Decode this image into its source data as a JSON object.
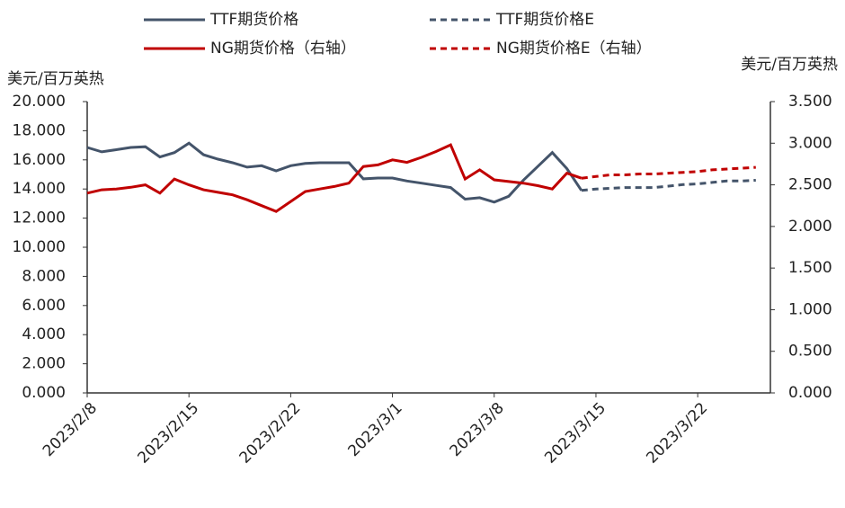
{
  "chart_data": {
    "type": "line",
    "y_label": "美元/百万英热",
    "y2_label": "美元/百万英热",
    "x": [
      "2023/2/8",
      "2023/2/9",
      "2023/2/10",
      "2023/2/11",
      "2023/2/12",
      "2023/2/13",
      "2023/2/14",
      "2023/2/15",
      "2023/2/16",
      "2023/2/17",
      "2023/2/18",
      "2023/2/19",
      "2023/2/20",
      "2023/2/21",
      "2023/2/22",
      "2023/2/23",
      "2023/2/24",
      "2023/2/25",
      "2023/2/26",
      "2023/2/27",
      "2023/2/28",
      "2023/3/1",
      "2023/3/2",
      "2023/3/3",
      "2023/3/4",
      "2023/3/5",
      "2023/3/6",
      "2023/3/7",
      "2023/3/8",
      "2023/3/9",
      "2023/3/10",
      "2023/3/11",
      "2023/3/12",
      "2023/3/13",
      "2023/3/14",
      "2023/3/15",
      "2023/3/16",
      "2023/3/17",
      "2023/3/18",
      "2023/3/19",
      "2023/3/20",
      "2023/3/21",
      "2023/3/22",
      "2023/3/23",
      "2023/3/24",
      "2023/3/25",
      "2023/3/26"
    ],
    "xlim": [
      "2023/2/8",
      "2023/3/27"
    ],
    "xticks": [
      "2023/2/8",
      "2023/2/15",
      "2023/2/22",
      "2023/3/1",
      "2023/3/8",
      "2023/3/15",
      "2023/3/22"
    ],
    "ylim": [
      0,
      20
    ],
    "yticks": [
      {
        "value": 0,
        "label": "0.000"
      },
      {
        "value": 2,
        "label": "2.000"
      },
      {
        "value": 4,
        "label": "4.000"
      },
      {
        "value": 6,
        "label": "6.000"
      },
      {
        "value": 8,
        "label": "8.000"
      },
      {
        "value": 10,
        "label": "10.000"
      },
      {
        "value": 12,
        "label": "12.000"
      },
      {
        "value": 14,
        "label": "14.000"
      },
      {
        "value": 16,
        "label": "16.000"
      },
      {
        "value": 18,
        "label": "18.000"
      },
      {
        "value": 20,
        "label": "20.000"
      }
    ],
    "y2lim": [
      0,
      3.5
    ],
    "y2ticks": [
      {
        "value": 0,
        "label": "0.000"
      },
      {
        "value": 0.5,
        "label": "0.500"
      },
      {
        "value": 1,
        "label": "1.000"
      },
      {
        "value": 1.5,
        "label": "1.500"
      },
      {
        "value": 2,
        "label": "2.000"
      },
      {
        "value": 2.5,
        "label": "2.500"
      },
      {
        "value": 3,
        "label": "3.000"
      },
      {
        "value": 3.5,
        "label": "3.500"
      }
    ],
    "series": [
      {
        "name": "TTF期货价格",
        "color": "#44546a",
        "dashed": false,
        "values": [
          16.85,
          16.55,
          16.7,
          16.85,
          16.9,
          16.2,
          16.5,
          17.15,
          16.35,
          16.05,
          15.8,
          15.5,
          15.6,
          15.25,
          15.6,
          15.75,
          15.8,
          15.8,
          15.8,
          14.7,
          14.75,
          14.75,
          14.55,
          14.4,
          14.25,
          14.1,
          13.3,
          13.4,
          13.1,
          13.5,
          14.6,
          15.55,
          16.5,
          15.4,
          13.9,
          null,
          null,
          null,
          null,
          null,
          null,
          null,
          null,
          null,
          null,
          null,
          null
        ]
      },
      {
        "name": "TTF期货价格E",
        "color": "#44546a",
        "dashed": true,
        "values": [
          null,
          null,
          null,
          null,
          null,
          null,
          null,
          null,
          null,
          null,
          null,
          null,
          null,
          null,
          null,
          null,
          null,
          null,
          null,
          null,
          null,
          null,
          null,
          null,
          null,
          null,
          null,
          null,
          null,
          null,
          null,
          null,
          null,
          null,
          13.9,
          14.0,
          14.05,
          14.1,
          14.1,
          14.1,
          14.2,
          14.3,
          14.35,
          14.45,
          14.55,
          14.55,
          14.6
        ]
      },
      {
        "name": "NG期货价格（右轴）",
        "color": "#c00000",
        "dashed": false,
        "axis": "y2",
        "values": [
          2.4,
          2.44,
          2.45,
          2.47,
          2.5,
          2.4,
          2.57,
          2.5,
          2.44,
          2.41,
          2.38,
          2.32,
          2.25,
          2.18,
          2.3,
          2.42,
          2.45,
          2.48,
          2.52,
          2.72,
          2.74,
          2.8,
          2.77,
          2.83,
          2.9,
          2.98,
          2.57,
          2.68,
          2.56,
          2.54,
          2.52,
          2.49,
          2.45,
          2.64,
          2.58,
          null,
          null,
          null,
          null,
          null,
          null,
          null,
          null,
          null,
          null,
          null,
          null
        ]
      },
      {
        "name": "NG期货价格E（右轴）",
        "color": "#c00000",
        "dashed": true,
        "axis": "y2",
        "values": [
          null,
          null,
          null,
          null,
          null,
          null,
          null,
          null,
          null,
          null,
          null,
          null,
          null,
          null,
          null,
          null,
          null,
          null,
          null,
          null,
          null,
          null,
          null,
          null,
          null,
          null,
          null,
          null,
          null,
          null,
          null,
          null,
          null,
          null,
          2.58,
          2.6,
          2.62,
          2.62,
          2.63,
          2.63,
          2.64,
          2.65,
          2.66,
          2.68,
          2.69,
          2.7,
          2.71
        ]
      }
    ]
  }
}
